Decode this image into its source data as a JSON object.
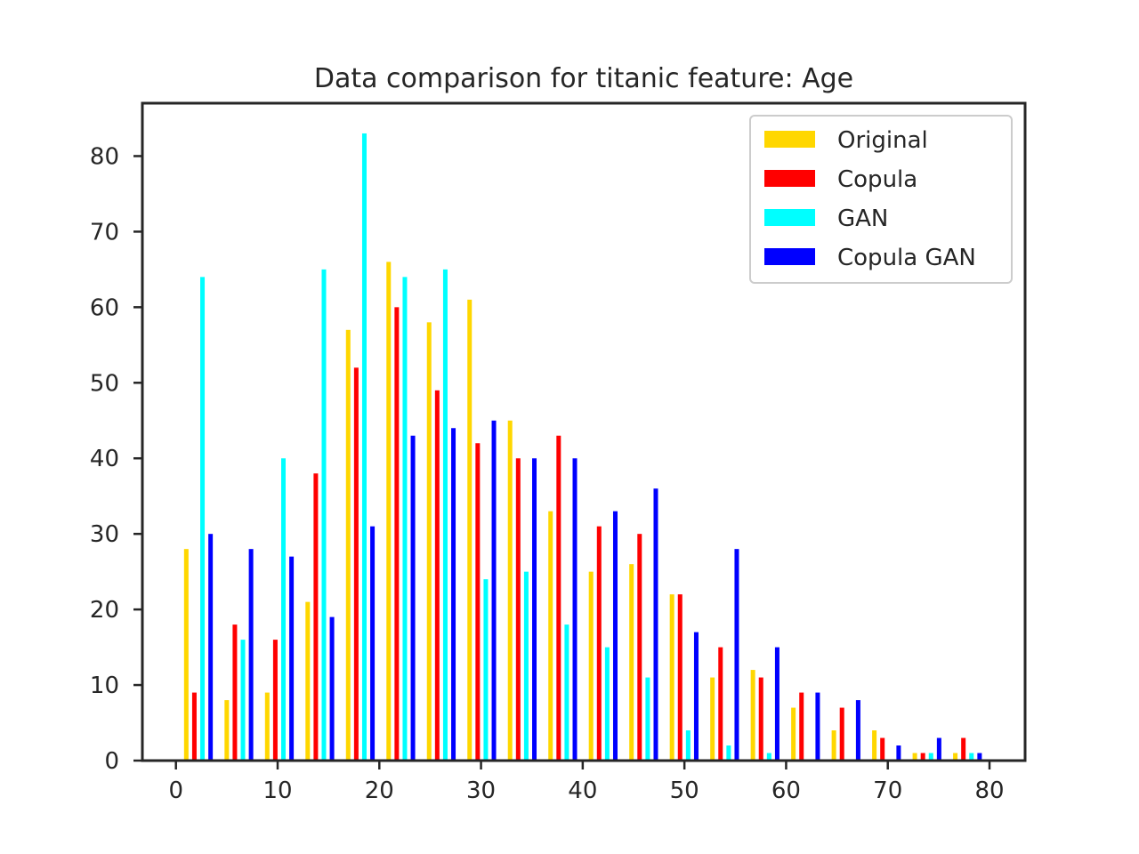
{
  "chart_data": {
    "type": "bar",
    "title": "Data comparison for titanic feature: Age",
    "xlabel": "",
    "ylabel": "",
    "xlim": [
      -3.3,
      83.5
    ],
    "ylim": [
      0,
      87
    ],
    "xticks": [
      0,
      10,
      20,
      30,
      40,
      50,
      60,
      70,
      80
    ],
    "yticks": [
      0,
      10,
      20,
      30,
      40,
      50,
      60,
      70,
      80
    ],
    "grid": false,
    "legend_position": "top-right",
    "bin_start": 0.42,
    "bin_width": 3.98,
    "bin_count": 20,
    "series": [
      {
        "name": "Original",
        "color": "#FFD700",
        "values": [
          28,
          8,
          9,
          21,
          57,
          66,
          58,
          61,
          45,
          33,
          25,
          26,
          22,
          11,
          12,
          7,
          4,
          4,
          1,
          1
        ]
      },
      {
        "name": "Copula",
        "color": "#FF0000",
        "values": [
          9,
          18,
          16,
          38,
          52,
          60,
          49,
          42,
          40,
          43,
          31,
          30,
          22,
          15,
          11,
          9,
          7,
          3,
          1,
          3
        ]
      },
      {
        "name": "GAN",
        "color": "#00FFFF",
        "values": [
          64,
          16,
          40,
          65,
          83,
          64,
          65,
          24,
          25,
          18,
          15,
          11,
          4,
          2,
          1,
          0,
          0,
          0,
          1,
          1
        ]
      },
      {
        "name": "Copula GAN",
        "color": "#0000FF",
        "values": [
          30,
          28,
          27,
          19,
          31,
          43,
          44,
          45,
          40,
          40,
          33,
          36,
          17,
          28,
          15,
          9,
          8,
          2,
          3,
          1
        ]
      }
    ]
  }
}
